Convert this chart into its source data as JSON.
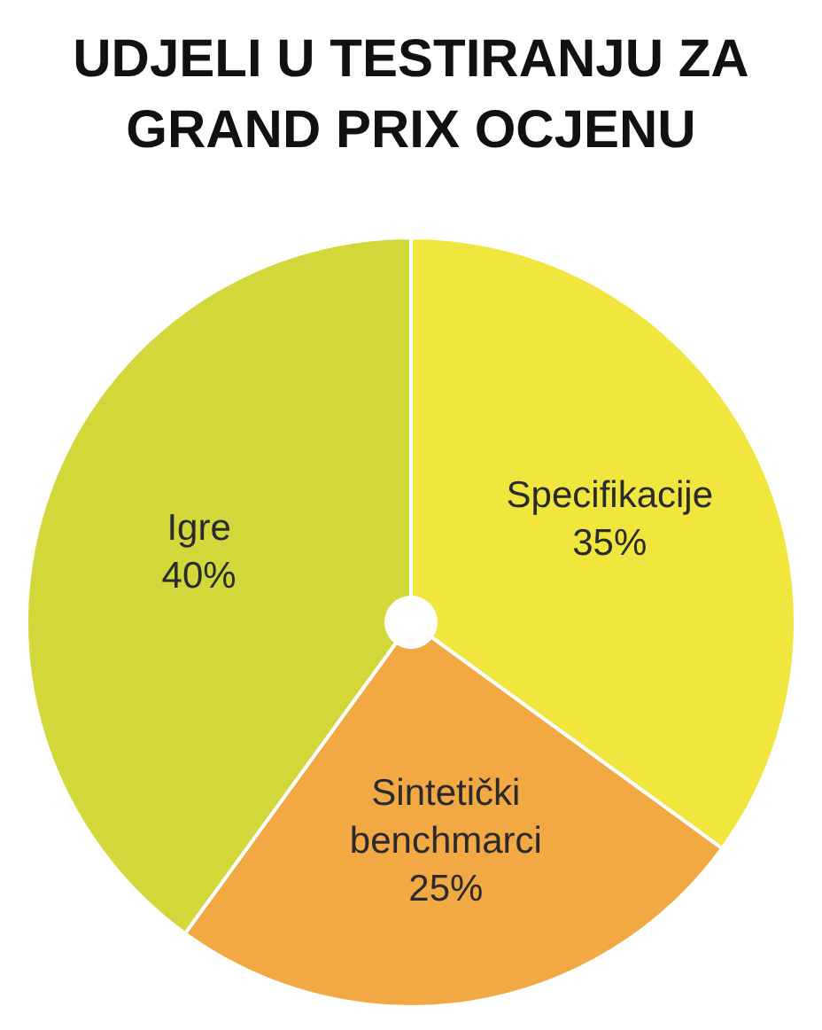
{
  "chart_data": {
    "type": "pie",
    "title": "UDJELI U TESTIRANJU ZA GRAND PRIX OCJENU",
    "categories": [
      "Specifikacije",
      "Sintetički benchmarci",
      "Igre"
    ],
    "values": [
      35,
      25,
      40
    ],
    "value_labels": [
      "35%",
      "25%",
      "40%"
    ],
    "colors": [
      "#f0e63e",
      "#f2a843",
      "#d3d83a"
    ],
    "legend": false
  }
}
